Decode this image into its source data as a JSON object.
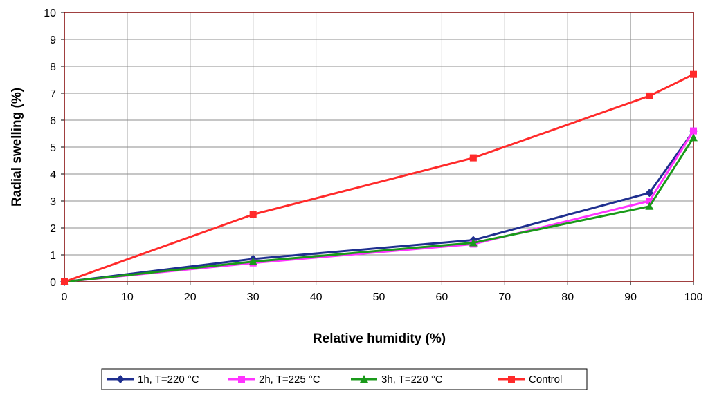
{
  "chart_data": {
    "type": "line",
    "title": "",
    "xlabel": "Relative humidity (%)",
    "ylabel": "Radial swelling (%)",
    "xlim": [
      0,
      100
    ],
    "ylim": [
      0,
      10
    ],
    "xticks": [
      0,
      10,
      20,
      30,
      40,
      50,
      60,
      70,
      80,
      90,
      100
    ],
    "yticks": [
      0,
      1,
      2,
      3,
      4,
      5,
      6,
      7,
      8,
      9,
      10
    ],
    "grid": true,
    "legend_position": "bottom",
    "plot_background": "#ffffff",
    "plot_border_color": "#800000",
    "series": [
      {
        "name": "1h, T=220 °C",
        "color": "#1f2f8f",
        "marker": "diamond",
        "x": [
          0,
          30,
          65,
          93,
          100
        ],
        "y": [
          0,
          0.85,
          1.55,
          3.3,
          5.6
        ]
      },
      {
        "name": "2h, T=225 °C",
        "color": "#ff33ff",
        "marker": "square",
        "x": [
          0,
          30,
          65,
          93,
          100
        ],
        "y": [
          0,
          0.7,
          1.4,
          3.0,
          5.6
        ]
      },
      {
        "name": "3h, T=220 °C",
        "color": "#1a9a1a",
        "marker": "triangle",
        "x": [
          0,
          30,
          65,
          93,
          100
        ],
        "y": [
          0,
          0.75,
          1.45,
          2.8,
          5.35
        ]
      },
      {
        "name": "Control",
        "color": "#ff2a2a",
        "marker": "square",
        "x": [
          0,
          30,
          65,
          93,
          100
        ],
        "y": [
          0,
          2.5,
          4.6,
          6.9,
          7.7
        ]
      }
    ]
  }
}
